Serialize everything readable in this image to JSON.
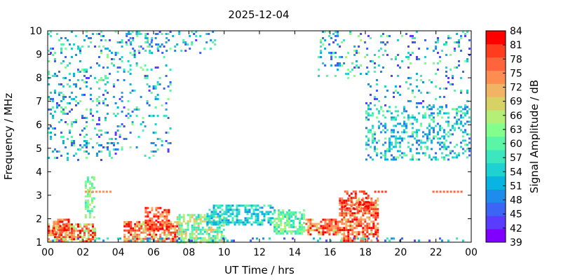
{
  "chart_data": {
    "type": "heatmap",
    "title": "2025-12-04",
    "xlabel": "UT Time / hrs",
    "ylabel": "Frequency / MHz",
    "xlim": [
      0,
      24
    ],
    "ylim": [
      1,
      10
    ],
    "x_ticks": [
      "00",
      "02",
      "04",
      "06",
      "08",
      "10",
      "12",
      "14",
      "16",
      "18",
      "20",
      "22",
      "00"
    ],
    "y_ticks": [
      "1",
      "2",
      "3",
      "4",
      "5",
      "6",
      "7",
      "8",
      "9",
      "10"
    ],
    "colorbar": {
      "label": "Signal Amplitude / dB",
      "min": 39,
      "max": 84,
      "ticks": [
        "39",
        "42",
        "45",
        "48",
        "51",
        "54",
        "57",
        "60",
        "63",
        "66",
        "69",
        "72",
        "75",
        "78",
        "81",
        "84"
      ],
      "colors": [
        "#7f00ff",
        "#5a3cff",
        "#3c64f5",
        "#1e8ceb",
        "#0ab4e0",
        "#1ed2d2",
        "#3ce6be",
        "#5af5a5",
        "#82ff8c",
        "#b4f078",
        "#d7d264",
        "#f0b464",
        "#ff8c50",
        "#ff643c",
        "#ff3c1e",
        "#ff0000"
      ]
    },
    "regions": [
      {
        "x": [
          0,
          2.7
        ],
        "y": [
          1.0,
          1.8
        ],
        "amp": [
          63,
          84
        ],
        "density": 0.75
      },
      {
        "x": [
          0.3,
          1.2
        ],
        "y": [
          1.3,
          2.0
        ],
        "amp": [
          72,
          84
        ],
        "density": 0.6
      },
      {
        "x": [
          2.1,
          2.7
        ],
        "y": [
          2.0,
          3.8
        ],
        "amp": [
          57,
          66
        ],
        "density": 0.5
      },
      {
        "x": [
          4.3,
          7.5
        ],
        "y": [
          1.0,
          1.9
        ],
        "amp": [
          66,
          84
        ],
        "density": 0.7
      },
      {
        "x": [
          5.5,
          6.9
        ],
        "y": [
          1.5,
          2.5
        ],
        "amp": [
          72,
          84
        ],
        "density": 0.6
      },
      {
        "x": [
          7.3,
          10.0
        ],
        "y": [
          1.0,
          2.2
        ],
        "amp": [
          54,
          72
        ],
        "density": 0.7
      },
      {
        "x": [
          9.0,
          12.8
        ],
        "y": [
          1.7,
          2.6
        ],
        "amp": [
          48,
          60
        ],
        "density": 0.6
      },
      {
        "x": [
          12.8,
          14.6
        ],
        "y": [
          1.3,
          2.4
        ],
        "amp": [
          54,
          66
        ],
        "density": 0.7
      },
      {
        "x": [
          14.6,
          16.5
        ],
        "y": [
          1.3,
          2.0
        ],
        "amp": [
          66,
          84
        ],
        "density": 0.7
      },
      {
        "x": [
          16.5,
          18.8
        ],
        "y": [
          1.0,
          2.9
        ],
        "amp": [
          69,
          84
        ],
        "density": 0.65
      },
      {
        "x": [
          16.8,
          18.2
        ],
        "y": [
          2.2,
          3.2
        ],
        "amp": [
          75,
          84
        ],
        "density": 0.4
      },
      {
        "x": [
          0,
          24
        ],
        "y": [
          1.0,
          1.2
        ],
        "amp": [
          42,
          60
        ],
        "density": 0.15
      },
      {
        "x": [
          0,
          3.8
        ],
        "y": [
          4.5,
          10.0
        ],
        "amp": [
          42,
          63
        ],
        "density": 0.15
      },
      {
        "x": [
          3.8,
          7.0
        ],
        "y": [
          4.5,
          10.0
        ],
        "amp": [
          42,
          63
        ],
        "density": 0.12
      },
      {
        "x": [
          4.3,
          9.5
        ],
        "y": [
          9.0,
          10.0
        ],
        "amp": [
          42,
          63
        ],
        "density": 0.15
      },
      {
        "x": [
          15.3,
          18.2
        ],
        "y": [
          8.0,
          10.0
        ],
        "amp": [
          42,
          66
        ],
        "density": 0.15
      },
      {
        "x": [
          18.0,
          24.0
        ],
        "y": [
          4.5,
          6.8
        ],
        "amp": [
          45,
          63
        ],
        "density": 0.3
      },
      {
        "x": [
          18.0,
          24.0
        ],
        "y": [
          6.8,
          10.0
        ],
        "amp": [
          42,
          63
        ],
        "density": 0.1
      }
    ],
    "features": [
      {
        "x": [
          2.1,
          3.6
        ],
        "y": 3.15,
        "amp": 75
      },
      {
        "x": [
          18.5,
          19.1
        ],
        "y": 3.15,
        "amp": 81
      },
      {
        "x": [
          21.8,
          23.5
        ],
        "y": 3.15,
        "amp": 78
      }
    ]
  }
}
